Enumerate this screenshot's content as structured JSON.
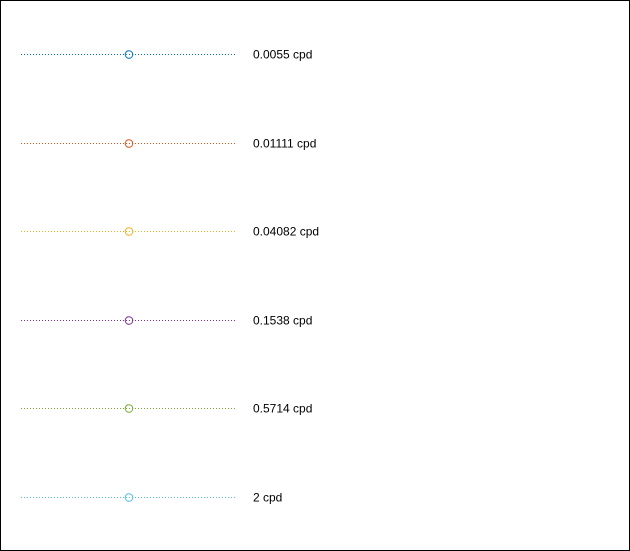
{
  "chart_data": {
    "type": "line",
    "legend": {
      "placement": "full",
      "entries": [
        {
          "name": "0.0055 cpd",
          "color": "#0072BD"
        },
        {
          "name": "0.01111 cpd",
          "color": "#D95319"
        },
        {
          "name": "0.04082 cpd",
          "color": "#EDB120"
        },
        {
          "name": "0.1538 cpd",
          "color": "#7E2F8E"
        },
        {
          "name": "0.5714 cpd",
          "color": "#77AC30"
        },
        {
          "name": "2 cpd",
          "color": "#4DBEEE"
        }
      ],
      "line_style": "dotted",
      "marker": "circle"
    }
  }
}
